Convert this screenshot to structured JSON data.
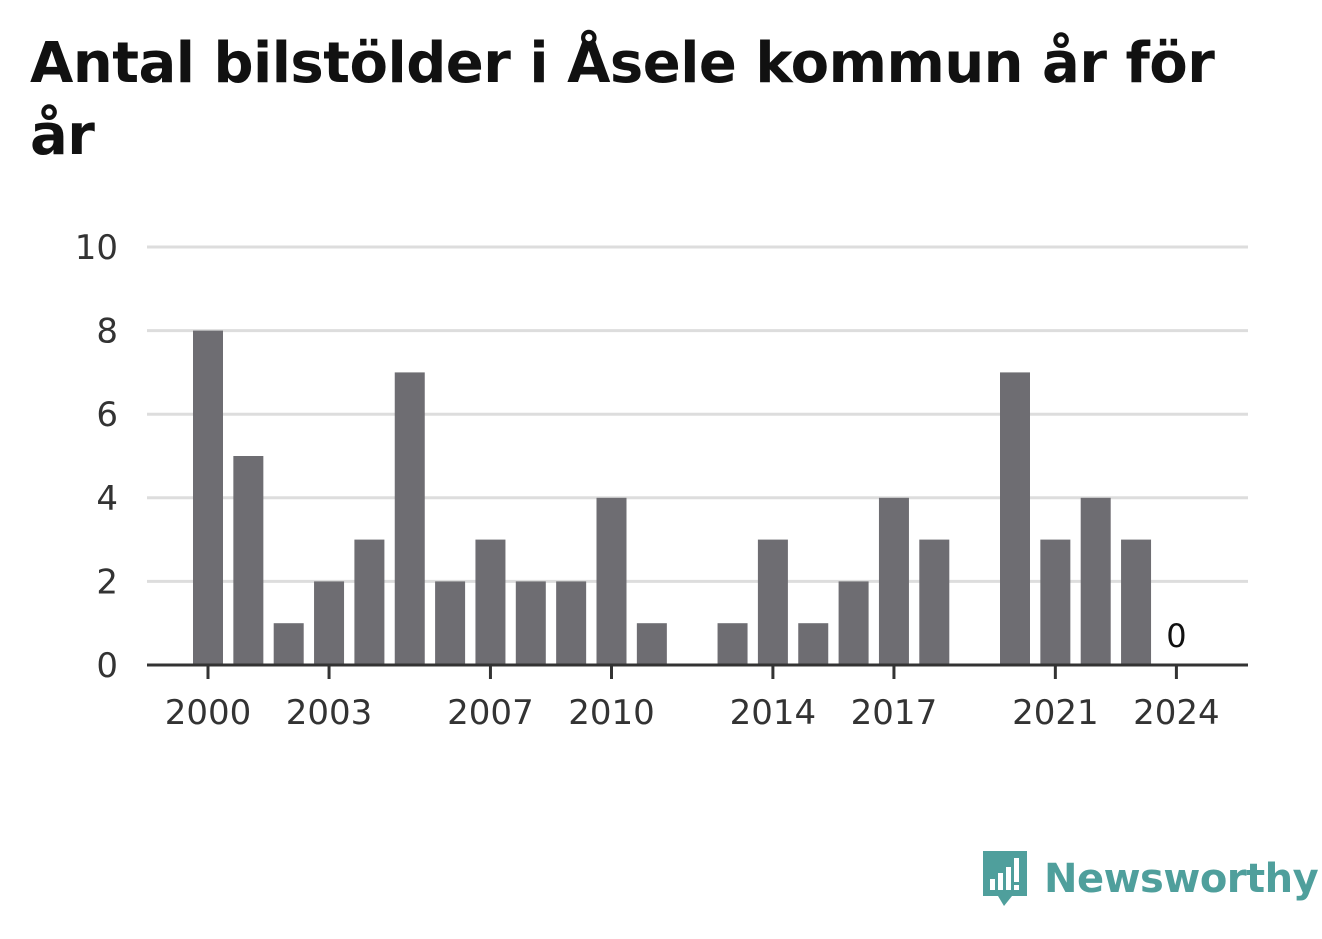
{
  "title": "Antal bilstölder i Åsele kommun år för år",
  "brand": {
    "name": "Newsworthy",
    "icon": "newsworthy-logo-icon",
    "color": "#4f9f9c"
  },
  "colors": {
    "bar": "#6e6d72",
    "grid": "#dddddd",
    "axis": "#333333"
  },
  "chart_data": {
    "type": "bar",
    "categories": [
      "2000",
      "2001",
      "2002",
      "2003",
      "2004",
      "2005",
      "2006",
      "2007",
      "2008",
      "2009",
      "2010",
      "2011",
      "2012",
      "2013",
      "2014",
      "2015",
      "2016",
      "2017",
      "2018",
      "2019",
      "2020",
      "2021",
      "2022",
      "2023",
      "2024"
    ],
    "values": [
      8,
      5,
      1,
      2,
      3,
      7,
      2,
      3,
      2,
      2,
      4,
      1,
      0,
      1,
      3,
      1,
      2,
      4,
      3,
      0,
      7,
      3,
      4,
      3,
      0
    ],
    "title": "Antal bilstölder i Åsele kommun år för år",
    "ylim": [
      0,
      10
    ],
    "yticks": [
      0,
      2,
      4,
      6,
      8,
      10
    ],
    "xtick_labels": [
      "2000",
      "2003",
      "2007",
      "2010",
      "2014",
      "2017",
      "2021",
      "2024"
    ],
    "data_labels": [
      {
        "category": "2024",
        "text": "0"
      }
    ],
    "grid": true,
    "legend": "none"
  }
}
